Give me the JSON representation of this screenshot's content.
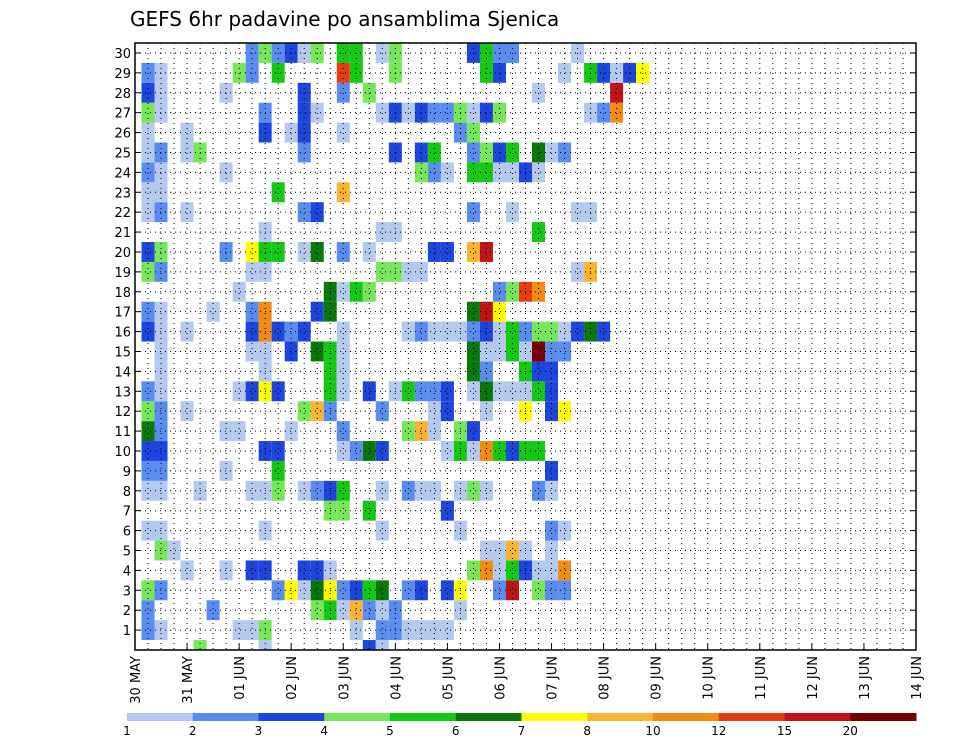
{
  "chart_data": {
    "type": "heatmap",
    "title": "GEFS 6hr padavine po ansamblima Sjenica",
    "y_tick_labels": [
      "1",
      "2",
      "3",
      "4",
      "5",
      "6",
      "7",
      "8",
      "9",
      "10",
      "11",
      "12",
      "13",
      "14",
      "15",
      "16",
      "17",
      "18",
      "19",
      "20",
      "21",
      "22",
      "23",
      "24",
      "25",
      "26",
      "27",
      "28",
      "29",
      "30"
    ],
    "x_tick_labels": [
      "30 MAY",
      "31 MAY",
      "01 JUN",
      "02 JUN",
      "03 JUN",
      "04 JUN",
      "05 JUN",
      "06 JUN",
      "07 JUN",
      "08 JUN",
      "09 JUN",
      "10 JUN",
      "11 JUN",
      "12 JUN",
      "13 JUN",
      "14 JUN"
    ],
    "x_time_steps": 61,
    "legend_levels": [
      "1",
      "2",
      "3",
      "4",
      "5",
      "6",
      "7",
      "8",
      "10",
      "12",
      "15",
      "20"
    ],
    "legend_colors": [
      "#b4c8f0",
      "#5a8cf0",
      "#1e46dc",
      "#78e65a",
      "#14c814",
      "#0a780a",
      "#ffff00",
      "#fab432",
      "#f08c14",
      "#e63c14",
      "#be1414",
      "#780000"
    ],
    "grid": true,
    "cells": [
      [
        1,
        1,
        1
      ],
      [
        1,
        1,
        2
      ],
      [
        1,
        2,
        1
      ],
      [
        1,
        8,
        1
      ],
      [
        1,
        9,
        1
      ],
      [
        1,
        10,
        4
      ],
      [
        1,
        17,
        1
      ],
      [
        1,
        19,
        2
      ],
      [
        1,
        20,
        2
      ],
      [
        1,
        21,
        1
      ],
      [
        1,
        22,
        1
      ],
      [
        1,
        23,
        1
      ],
      [
        1,
        24,
        1
      ],
      [
        2,
        1,
        2
      ],
      [
        2,
        6,
        2
      ],
      [
        2,
        14,
        4
      ],
      [
        2,
        15,
        5
      ],
      [
        2,
        16,
        1
      ],
      [
        2,
        17,
        8
      ],
      [
        2,
        18,
        2
      ],
      [
        2,
        19,
        1
      ],
      [
        2,
        20,
        2
      ],
      [
        2,
        25,
        1
      ],
      [
        3,
        1,
        4
      ],
      [
        3,
        2,
        2
      ],
      [
        3,
        11,
        2
      ],
      [
        3,
        12,
        7
      ],
      [
        3,
        13,
        1
      ],
      [
        3,
        14,
        6
      ],
      [
        3,
        15,
        7
      ],
      [
        3,
        16,
        2
      ],
      [
        3,
        17,
        3
      ],
      [
        3,
        18,
        5
      ],
      [
        3,
        19,
        6
      ],
      [
        3,
        21,
        2
      ],
      [
        3,
        22,
        3
      ],
      [
        3,
        24,
        3
      ],
      [
        3,
        25,
        7
      ],
      [
        3,
        28,
        2
      ],
      [
        3,
        29,
        11
      ],
      [
        3,
        31,
        4
      ],
      [
        3,
        32,
        2
      ],
      [
        3,
        33,
        2
      ],
      [
        4,
        4,
        1
      ],
      [
        4,
        7,
        1
      ],
      [
        4,
        9,
        3
      ],
      [
        4,
        10,
        3
      ],
      [
        4,
        13,
        3
      ],
      [
        4,
        14,
        3
      ],
      [
        4,
        15,
        1
      ],
      [
        4,
        26,
        4
      ],
      [
        4,
        27,
        9
      ],
      [
        4,
        28,
        1
      ],
      [
        4,
        29,
        5
      ],
      [
        4,
        30,
        3
      ],
      [
        4,
        31,
        1
      ],
      [
        4,
        32,
        1
      ],
      [
        4,
        33,
        9
      ],
      [
        5,
        2,
        4
      ],
      [
        5,
        3,
        1
      ],
      [
        5,
        27,
        1
      ],
      [
        5,
        28,
        1
      ],
      [
        5,
        29,
        8
      ],
      [
        5,
        30,
        1
      ],
      [
        5,
        32,
        1
      ],
      [
        6,
        1,
        1
      ],
      [
        6,
        2,
        1
      ],
      [
        6,
        10,
        1
      ],
      [
        6,
        19,
        1
      ],
      [
        6,
        25,
        1
      ],
      [
        6,
        32,
        2
      ],
      [
        6,
        33,
        1
      ],
      [
        7,
        15,
        4
      ],
      [
        7,
        16,
        4
      ],
      [
        7,
        18,
        5
      ],
      [
        7,
        24,
        3
      ],
      [
        8,
        1,
        1
      ],
      [
        8,
        2,
        1
      ],
      [
        8,
        5,
        1
      ],
      [
        8,
        9,
        1
      ],
      [
        8,
        10,
        1
      ],
      [
        8,
        11,
        4
      ],
      [
        8,
        13,
        1
      ],
      [
        8,
        14,
        2
      ],
      [
        8,
        15,
        3
      ],
      [
        8,
        16,
        5
      ],
      [
        8,
        19,
        1
      ],
      [
        8,
        21,
        2
      ],
      [
        8,
        22,
        1
      ],
      [
        8,
        23,
        1
      ],
      [
        8,
        25,
        1
      ],
      [
        8,
        26,
        4
      ],
      [
        8,
        27,
        1
      ],
      [
        8,
        31,
        2
      ],
      [
        8,
        32,
        1
      ],
      [
        9,
        1,
        2
      ],
      [
        9,
        2,
        2
      ],
      [
        9,
        7,
        1
      ],
      [
        9,
        11,
        5
      ],
      [
        9,
        32,
        3
      ],
      [
        10,
        1,
        3
      ],
      [
        10,
        2,
        3
      ],
      [
        10,
        10,
        3
      ],
      [
        10,
        11,
        3
      ],
      [
        10,
        16,
        1
      ],
      [
        10,
        17,
        2
      ],
      [
        10,
        18,
        6
      ],
      [
        10,
        19,
        3
      ],
      [
        10,
        24,
        1
      ],
      [
        10,
        25,
        5
      ],
      [
        10,
        26,
        1
      ],
      [
        10,
        27,
        9
      ],
      [
        10,
        28,
        5
      ],
      [
        10,
        29,
        3
      ],
      [
        10,
        30,
        5
      ],
      [
        10,
        31,
        5
      ],
      [
        11,
        1,
        6
      ],
      [
        11,
        2,
        2
      ],
      [
        11,
        7,
        1
      ],
      [
        11,
        8,
        1
      ],
      [
        11,
        12,
        1
      ],
      [
        11,
        16,
        2
      ],
      [
        11,
        21,
        4
      ],
      [
        11,
        22,
        8
      ],
      [
        11,
        23,
        1
      ],
      [
        11,
        25,
        4
      ],
      [
        11,
        26,
        3
      ],
      [
        12,
        1,
        4
      ],
      [
        12,
        2,
        2
      ],
      [
        12,
        4,
        1
      ],
      [
        12,
        13,
        4
      ],
      [
        12,
        14,
        8
      ],
      [
        12,
        15,
        2
      ],
      [
        12,
        19,
        2
      ],
      [
        12,
        23,
        1
      ],
      [
        12,
        24,
        3
      ],
      [
        12,
        27,
        1
      ],
      [
        12,
        30,
        7
      ],
      [
        12,
        32,
        3
      ],
      [
        12,
        33,
        7
      ],
      [
        13,
        1,
        2
      ],
      [
        13,
        2,
        1
      ],
      [
        13,
        8,
        1
      ],
      [
        13,
        9,
        3
      ],
      [
        13,
        10,
        7
      ],
      [
        13,
        11,
        3
      ],
      [
        13,
        15,
        5
      ],
      [
        13,
        16,
        1
      ],
      [
        13,
        18,
        3
      ],
      [
        13,
        20,
        1
      ],
      [
        13,
        21,
        5
      ],
      [
        13,
        22,
        2
      ],
      [
        13,
        23,
        2
      ],
      [
        13,
        24,
        3
      ],
      [
        13,
        26,
        1
      ],
      [
        13,
        27,
        6
      ],
      [
        13,
        28,
        1
      ],
      [
        13,
        29,
        1
      ],
      [
        13,
        30,
        1
      ],
      [
        13,
        31,
        5
      ],
      [
        13,
        32,
        3
      ],
      [
        14,
        2,
        1
      ],
      [
        14,
        10,
        1
      ],
      [
        14,
        15,
        5
      ],
      [
        14,
        16,
        1
      ],
      [
        14,
        26,
        6
      ],
      [
        14,
        27,
        2
      ],
      [
        14,
        30,
        5
      ],
      [
        14,
        31,
        3
      ],
      [
        14,
        32,
        3
      ],
      [
        15,
        2,
        1
      ],
      [
        15,
        9,
        1
      ],
      [
        15,
        10,
        1
      ],
      [
        15,
        12,
        3
      ],
      [
        15,
        14,
        6
      ],
      [
        15,
        15,
        5
      ],
      [
        15,
        16,
        1
      ],
      [
        15,
        26,
        6
      ],
      [
        15,
        27,
        1
      ],
      [
        15,
        28,
        1
      ],
      [
        15,
        29,
        5
      ],
      [
        15,
        30,
        1
      ],
      [
        15,
        31,
        12
      ],
      [
        15,
        32,
        2
      ],
      [
        15,
        33,
        2
      ],
      [
        16,
        1,
        3
      ],
      [
        16,
        2,
        1
      ],
      [
        16,
        4,
        1
      ],
      [
        16,
        9,
        3
      ],
      [
        16,
        10,
        9
      ],
      [
        16,
        11,
        3
      ],
      [
        16,
        12,
        2
      ],
      [
        16,
        13,
        3
      ],
      [
        16,
        16,
        1
      ],
      [
        16,
        21,
        1
      ],
      [
        16,
        22,
        2
      ],
      [
        16,
        23,
        1
      ],
      [
        16,
        24,
        1
      ],
      [
        16,
        25,
        1
      ],
      [
        16,
        26,
        2
      ],
      [
        16,
        27,
        3
      ],
      [
        16,
        28,
        1
      ],
      [
        16,
        29,
        5
      ],
      [
        16,
        30,
        2
      ],
      [
        16,
        31,
        4
      ],
      [
        16,
        32,
        4
      ],
      [
        16,
        33,
        1
      ],
      [
        16,
        34,
        3
      ],
      [
        16,
        35,
        6
      ],
      [
        16,
        36,
        3
      ],
      [
        17,
        1,
        2
      ],
      [
        17,
        2,
        1
      ],
      [
        17,
        6,
        1
      ],
      [
        17,
        9,
        2
      ],
      [
        17,
        10,
        9
      ],
      [
        17,
        14,
        3
      ],
      [
        17,
        15,
        6
      ],
      [
        17,
        26,
        6
      ],
      [
        17,
        27,
        11
      ],
      [
        17,
        28,
        7
      ],
      [
        18,
        8,
        1
      ],
      [
        18,
        15,
        6
      ],
      [
        18,
        16,
        1
      ],
      [
        18,
        17,
        5
      ],
      [
        18,
        18,
        4
      ],
      [
        18,
        28,
        2
      ],
      [
        18,
        29,
        4
      ],
      [
        18,
        30,
        10
      ],
      [
        18,
        31,
        9
      ],
      [
        19,
        1,
        4
      ],
      [
        19,
        2,
        2
      ],
      [
        19,
        9,
        1
      ],
      [
        19,
        10,
        1
      ],
      [
        19,
        19,
        4
      ],
      [
        19,
        20,
        4
      ],
      [
        19,
        21,
        1
      ],
      [
        19,
        22,
        1
      ],
      [
        19,
        34,
        1
      ],
      [
        19,
        35,
        8
      ],
      [
        20,
        1,
        3
      ],
      [
        20,
        2,
        4
      ],
      [
        20,
        7,
        2
      ],
      [
        20,
        9,
        7
      ],
      [
        20,
        10,
        5
      ],
      [
        20,
        11,
        5
      ],
      [
        20,
        13,
        1
      ],
      [
        20,
        14,
        6
      ],
      [
        20,
        16,
        2
      ],
      [
        20,
        18,
        1
      ],
      [
        20,
        23,
        3
      ],
      [
        20,
        24,
        3
      ],
      [
        20,
        26,
        8
      ],
      [
        20,
        27,
        11
      ],
      [
        21,
        10,
        1
      ],
      [
        21,
        19,
        1
      ],
      [
        21,
        20,
        1
      ],
      [
        21,
        31,
        5
      ],
      [
        22,
        1,
        1
      ],
      [
        22,
        2,
        2
      ],
      [
        22,
        4,
        1
      ],
      [
        22,
        13,
        2
      ],
      [
        22,
        14,
        3
      ],
      [
        22,
        26,
        2
      ],
      [
        22,
        29,
        1
      ],
      [
        22,
        34,
        1
      ],
      [
        22,
        35,
        1
      ],
      [
        23,
        1,
        1
      ],
      [
        23,
        2,
        1
      ],
      [
        23,
        11,
        5
      ],
      [
        23,
        16,
        8
      ],
      [
        24,
        1,
        2
      ],
      [
        24,
        2,
        1
      ],
      [
        24,
        7,
        1
      ],
      [
        24,
        22,
        4
      ],
      [
        24,
        23,
        2
      ],
      [
        24,
        24,
        1
      ],
      [
        24,
        26,
        5
      ],
      [
        24,
        27,
        5
      ],
      [
        24,
        28,
        1
      ],
      [
        24,
        29,
        1
      ],
      [
        24,
        30,
        3
      ],
      [
        24,
        31,
        1
      ],
      [
        25,
        1,
        1
      ],
      [
        25,
        2,
        2
      ],
      [
        25,
        4,
        1
      ],
      [
        25,
        5,
        4
      ],
      [
        25,
        13,
        2
      ],
      [
        25,
        20,
        3
      ],
      [
        25,
        22,
        3
      ],
      [
        25,
        23,
        5
      ],
      [
        25,
        26,
        2
      ],
      [
        25,
        27,
        4
      ],
      [
        25,
        28,
        3
      ],
      [
        25,
        29,
        5
      ],
      [
        25,
        31,
        6
      ],
      [
        25,
        32,
        1
      ],
      [
        25,
        33,
        2
      ],
      [
        26,
        1,
        1
      ],
      [
        26,
        4,
        1
      ],
      [
        26,
        10,
        3
      ],
      [
        26,
        12,
        1
      ],
      [
        26,
        13,
        3
      ],
      [
        26,
        16,
        1
      ],
      [
        26,
        25,
        2
      ],
      [
        26,
        26,
        4
      ],
      [
        27,
        1,
        4
      ],
      [
        27,
        2,
        1
      ],
      [
        27,
        10,
        2
      ],
      [
        27,
        13,
        3
      ],
      [
        27,
        14,
        1
      ],
      [
        27,
        19,
        1
      ],
      [
        27,
        20,
        3
      ],
      [
        27,
        21,
        1
      ],
      [
        27,
        22,
        3
      ],
      [
        27,
        23,
        2
      ],
      [
        27,
        24,
        2
      ],
      [
        27,
        25,
        4
      ],
      [
        27,
        26,
        1
      ],
      [
        27,
        27,
        3
      ],
      [
        27,
        28,
        4
      ],
      [
        27,
        35,
        1
      ],
      [
        27,
        36,
        2
      ],
      [
        27,
        37,
        9
      ],
      [
        28,
        1,
        3
      ],
      [
        28,
        2,
        1
      ],
      [
        28,
        7,
        1
      ],
      [
        28,
        13,
        3
      ],
      [
        28,
        16,
        2
      ],
      [
        28,
        18,
        4
      ],
      [
        28,
        31,
        1
      ],
      [
        28,
        37,
        11
      ],
      [
        29,
        1,
        2
      ],
      [
        29,
        2,
        1
      ],
      [
        29,
        8,
        4
      ],
      [
        29,
        9,
        2
      ],
      [
        29,
        11,
        5
      ],
      [
        29,
        16,
        10
      ],
      [
        29,
        17,
        5
      ],
      [
        29,
        20,
        4
      ],
      [
        29,
        27,
        5
      ],
      [
        29,
        28,
        3
      ],
      [
        29,
        33,
        1
      ],
      [
        29,
        35,
        5
      ],
      [
        29,
        36,
        3
      ],
      [
        29,
        37,
        1
      ],
      [
        29,
        38,
        3
      ],
      [
        29,
        39,
        7
      ],
      [
        30,
        9,
        2
      ],
      [
        30,
        10,
        4
      ],
      [
        30,
        11,
        2
      ],
      [
        30,
        12,
        3
      ],
      [
        30,
        13,
        1
      ],
      [
        30,
        14,
        4
      ],
      [
        30,
        16,
        5
      ],
      [
        30,
        17,
        5
      ],
      [
        30,
        19,
        1
      ],
      [
        30,
        20,
        4
      ],
      [
        30,
        26,
        3
      ],
      [
        30,
        27,
        5
      ],
      [
        30,
        28,
        2
      ],
      [
        30,
        29,
        2
      ],
      [
        30,
        34,
        1
      ],
      [
        0,
        5,
        4
      ],
      [
        0,
        10,
        1
      ],
      [
        0,
        18,
        3
      ],
      [
        0,
        19,
        1
      ]
    ]
  }
}
